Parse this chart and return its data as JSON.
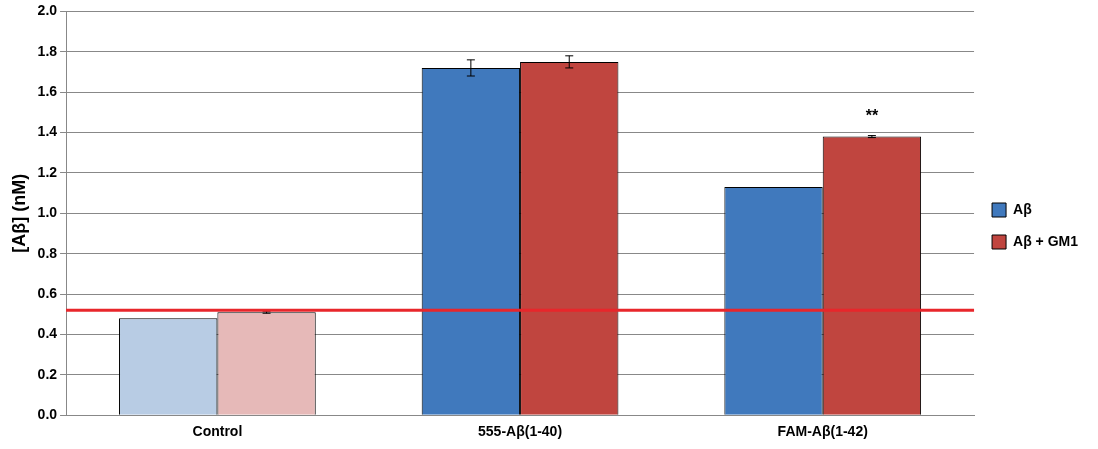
{
  "chart_data": {
    "type": "bar",
    "ylabel": "[Aβ] (nM)",
    "categories": [
      "Control",
      "555-Aβ(1-40)",
      "FAM-Aβ(1-42)"
    ],
    "series": [
      {
        "name": "Aβ",
        "color": "#4079bd",
        "colors": [
          "#b8cce4",
          "#4079bd",
          "#4079bd"
        ],
        "values": [
          0.48,
          1.72,
          1.13
        ],
        "errors": [
          null,
          0.04,
          null
        ]
      },
      {
        "name": "Aβ + GM1",
        "color": "#c0453f",
        "colors": [
          "#e6b9b8",
          "#c0453f",
          "#c0453f"
        ],
        "values": [
          0.51,
          1.75,
          1.38
        ],
        "errors": [
          0.005,
          0.03,
          0.005
        ]
      }
    ],
    "ylim": [
      0,
      2
    ],
    "yticks": [
      {
        "value": 0,
        "label": "0.0"
      },
      {
        "value": 0.2,
        "label": "0.2"
      },
      {
        "value": 0.4,
        "label": "0.4"
      },
      {
        "value": 0.6,
        "label": "0.6"
      },
      {
        "value": 0.8,
        "label": "0.8"
      },
      {
        "value": 1,
        "label": "1.0"
      },
      {
        "value": 1.2,
        "label": "1.2"
      },
      {
        "value": 1.4,
        "label": "1.4"
      },
      {
        "value": 1.6,
        "label": "1.6"
      },
      {
        "value": 1.8,
        "label": "1.8"
      },
      {
        "value": 2,
        "label": "2.0"
      }
    ],
    "ref_lines": [
      {
        "axis": "y",
        "value": 0.52,
        "color": "#e8262b"
      }
    ],
    "annotations": [
      {
        "text": "**",
        "x": "FAM-Aβ(1-42)",
        "y": 1.38
      }
    ],
    "grid": "y",
    "legend": "right"
  }
}
